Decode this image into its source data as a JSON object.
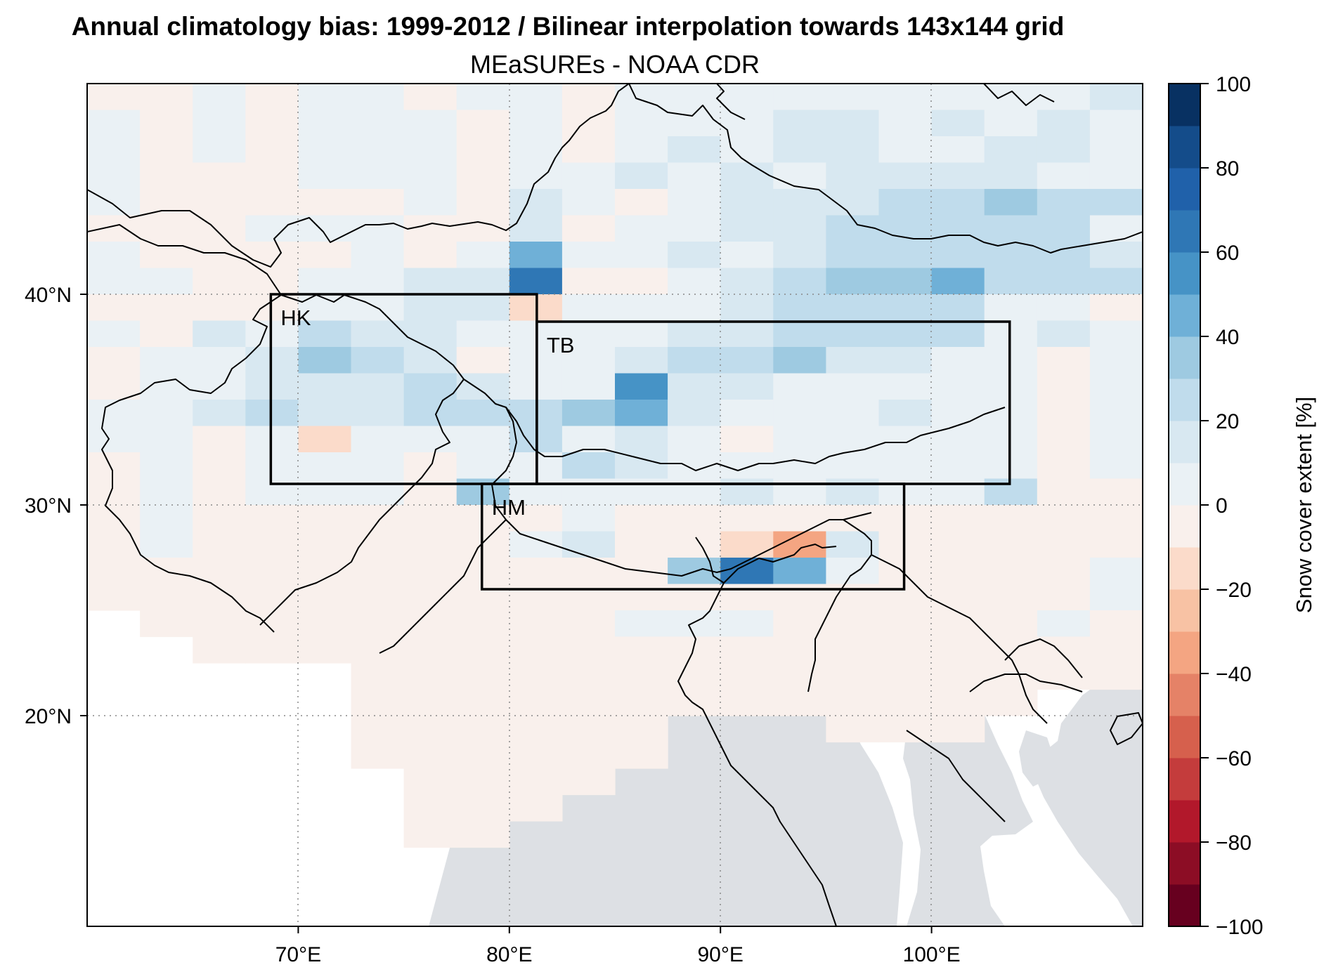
{
  "title": "Annual climatology bias: 1999-2012 / Bilinear interpolation towards 143x144 grid",
  "subtitle": "MEaSUREs - NOAA CDR",
  "map": {
    "lon_range": [
      60,
      110
    ],
    "lat_range": [
      10,
      50
    ],
    "land_color": "#ffffff",
    "ocean_color": "#dde0e4",
    "lon_ticks": [
      {
        "value": 70,
        "label": "70°E"
      },
      {
        "value": 80,
        "label": "80°E"
      },
      {
        "value": 90,
        "label": "90°E"
      },
      {
        "value": 100,
        "label": "100°E"
      }
    ],
    "lat_ticks": [
      {
        "value": 40,
        "label": "40°N"
      },
      {
        "value": 30,
        "label": "30°N"
      },
      {
        "value": 20,
        "label": "20°N"
      }
    ],
    "grid": "dotted"
  },
  "regions": [
    {
      "label": "HK",
      "lon": [
        68.7,
        81.3
      ],
      "lat": [
        31.0,
        40.0
      ]
    },
    {
      "label": "TB",
      "lon": [
        81.3,
        103.7
      ],
      "lat": [
        31.0,
        38.7
      ]
    },
    {
      "label": "HM",
      "lon": [
        78.7,
        98.7
      ],
      "lat": [
        26.0,
        31.0
      ]
    }
  ],
  "colorbar": {
    "label": "Snow cover extent [%]",
    "range": [
      -100,
      100
    ],
    "step": 10,
    "ticks": [
      {
        "value": 100,
        "label": "100"
      },
      {
        "value": 80,
        "label": "80"
      },
      {
        "value": 60,
        "label": "60"
      },
      {
        "value": 40,
        "label": "40"
      },
      {
        "value": 20,
        "label": "20"
      },
      {
        "value": 0,
        "label": "0"
      },
      {
        "value": -20,
        "label": "−20"
      },
      {
        "value": -40,
        "label": "−40"
      },
      {
        "value": -60,
        "label": "−60"
      },
      {
        "value": -80,
        "label": "−80"
      },
      {
        "value": -100,
        "label": "−100"
      }
    ],
    "colors": [
      "#67001f",
      "#8c0d25",
      "#b2182b",
      "#c43c3c",
      "#d6604d",
      "#e58267",
      "#f4a582",
      "#f8c2a4",
      "#fbdbca",
      "#f9f0ec",
      "#eaf1f5",
      "#d8e8f1",
      "#c0dcec",
      "#9ecae1",
      "#6fb0d7",
      "#4693c6",
      "#2f77b5",
      "#2061aa",
      "#144c8a",
      "#083162"
    ]
  },
  "chart_data": {
    "type": "heatmap",
    "title": "Annual climatology bias: 1999-2012 / Bilinear interpolation towards 143x144 grid",
    "subtitle": "MEaSUREs - NOAA CDR",
    "units": "Snow cover extent [%]",
    "grid_lon_start": 60.0,
    "grid_lat_top": 50.0,
    "cell_lon_deg": 2.5,
    "cell_lat_deg": 1.25,
    "ncols": 20,
    "rows": [
      [
        -5,
        -5,
        5,
        -5,
        5,
        5,
        -5,
        5,
        5,
        -5,
        5,
        5,
        5,
        5,
        5,
        5,
        5,
        5,
        5,
        15
      ],
      [
        5,
        -5,
        5,
        -5,
        5,
        5,
        5,
        -5,
        5,
        -5,
        5,
        5,
        5,
        15,
        15,
        5,
        15,
        5,
        15,
        5
      ],
      [
        5,
        -5,
        5,
        -5,
        5,
        5,
        5,
        -5,
        5,
        -5,
        5,
        15,
        5,
        15,
        15,
        5,
        5,
        15,
        15,
        5
      ],
      [
        5,
        -5,
        -5,
        -5,
        5,
        5,
        5,
        -5,
        5,
        5,
        15,
        5,
        15,
        5,
        15,
        15,
        15,
        15,
        5,
        5
      ],
      [
        5,
        -5,
        -5,
        -5,
        -5,
        -5,
        5,
        -5,
        15,
        5,
        -5,
        5,
        15,
        15,
        15,
        25,
        25,
        35,
        25,
        25
      ],
      [
        -5,
        -5,
        -5,
        5,
        5,
        5,
        -5,
        -5,
        15,
        -5,
        5,
        5,
        15,
        15,
        25,
        25,
        25,
        25,
        25,
        5
      ],
      [
        5,
        -5,
        -5,
        -5,
        -5,
        5,
        -5,
        5,
        45,
        5,
        5,
        15,
        5,
        15,
        25,
        25,
        25,
        25,
        25,
        15
      ],
      [
        5,
        5,
        -5,
        -5,
        5,
        5,
        15,
        15,
        65,
        -5,
        -5,
        5,
        15,
        25,
        35,
        35,
        45,
        25,
        25,
        25
      ],
      [
        -5,
        -5,
        -5,
        -5,
        5,
        5,
        15,
        15,
        -15,
        5,
        5,
        5,
        15,
        25,
        25,
        25,
        25,
        5,
        5,
        -5
      ],
      [
        5,
        -5,
        15,
        5,
        25,
        15,
        15,
        5,
        5,
        5,
        5,
        15,
        15,
        25,
        25,
        25,
        25,
        5,
        15,
        5
      ],
      [
        -5,
        5,
        5,
        15,
        35,
        25,
        15,
        -5,
        5,
        5,
        15,
        25,
        25,
        35,
        15,
        15,
        5,
        5,
        -5,
        5
      ],
      [
        -5,
        5,
        5,
        15,
        15,
        15,
        25,
        15,
        5,
        5,
        55,
        15,
        15,
        5,
        5,
        5,
        5,
        5,
        -5,
        5
      ],
      [
        5,
        5,
        15,
        25,
        15,
        15,
        25,
        25,
        25,
        35,
        45,
        15,
        5,
        5,
        5,
        15,
        5,
        5,
        -5,
        5
      ],
      [
        5,
        5,
        -5,
        5,
        -15,
        5,
        5,
        5,
        25,
        5,
        15,
        5,
        -5,
        5,
        5,
        5,
        5,
        5,
        -5,
        5
      ],
      [
        -5,
        5,
        -5,
        5,
        5,
        5,
        -5,
        5,
        5,
        25,
        15,
        5,
        5,
        5,
        5,
        5,
        5,
        5,
        -5,
        5
      ],
      [
        -5,
        5,
        -5,
        5,
        5,
        5,
        -5,
        35,
        5,
        5,
        5,
        5,
        15,
        5,
        15,
        5,
        5,
        25,
        -5,
        -5
      ],
      [
        -5,
        5,
        -5,
        -5,
        -5,
        -5,
        -5,
        -5,
        -5,
        5,
        -5,
        -5,
        -5,
        -5,
        -5,
        -5,
        -5,
        -5,
        -5,
        -5
      ],
      [
        -5,
        5,
        -5,
        -5,
        -5,
        -5,
        -5,
        -5,
        5,
        15,
        -5,
        -5,
        -15,
        -35,
        15,
        -5,
        -5,
        -5,
        -5,
        -5
      ],
      [
        -5,
        -5,
        -5,
        -5,
        -5,
        -5,
        -5,
        -5,
        -5,
        -5,
        -5,
        35,
        65,
        45,
        5,
        -5,
        -5,
        -5,
        -5,
        5
      ],
      [
        -5,
        -5,
        -5,
        -5,
        -5,
        -5,
        -5,
        -5,
        -5,
        -5,
        -5,
        -5,
        -5,
        -5,
        -5,
        -5,
        -5,
        -5,
        -5,
        5
      ],
      [
        null,
        -5,
        -5,
        -5,
        -5,
        -5,
        -5,
        -5,
        -5,
        -5,
        5,
        5,
        5,
        -5,
        -5,
        -5,
        -5,
        -5,
        5,
        -5
      ],
      [
        null,
        null,
        -5,
        -5,
        -5,
        -5,
        -5,
        -5,
        -5,
        -5,
        -5,
        -5,
        -5,
        -5,
        -5,
        -5,
        -5,
        -5,
        -5,
        -5
      ],
      [
        null,
        null,
        null,
        null,
        null,
        -5,
        -5,
        -5,
        -5,
        -5,
        -5,
        -5,
        -5,
        -5,
        -5,
        -5,
        -5,
        -5,
        -5,
        -5
      ],
      [
        null,
        null,
        null,
        null,
        null,
        -5,
        -5,
        -5,
        -5,
        -5,
        -5,
        -5,
        -5,
        -5,
        -5,
        -5,
        -5,
        -5,
        null,
        null
      ],
      [
        null,
        null,
        null,
        null,
        null,
        -5,
        -5,
        -5,
        -5,
        -5,
        -5,
        null,
        null,
        null,
        -5,
        -5,
        -5,
        null,
        null,
        null
      ],
      [
        null,
        null,
        null,
        null,
        null,
        -5,
        -5,
        -5,
        -5,
        -5,
        -5,
        null,
        null,
        null,
        null,
        null,
        null,
        null,
        null,
        null
      ],
      [
        null,
        null,
        null,
        null,
        null,
        null,
        -5,
        -5,
        -5,
        -5,
        null,
        null,
        null,
        null,
        null,
        null,
        null,
        null,
        null,
        null
      ],
      [
        null,
        null,
        null,
        null,
        null,
        null,
        -5,
        -5,
        -5,
        null,
        null,
        null,
        null,
        null,
        null,
        null,
        null,
        null,
        null,
        null
      ],
      [
        null,
        null,
        null,
        null,
        null,
        null,
        -5,
        -5,
        null,
        null,
        null,
        null,
        null,
        null,
        null,
        null,
        null,
        null,
        null,
        null
      ]
    ]
  }
}
